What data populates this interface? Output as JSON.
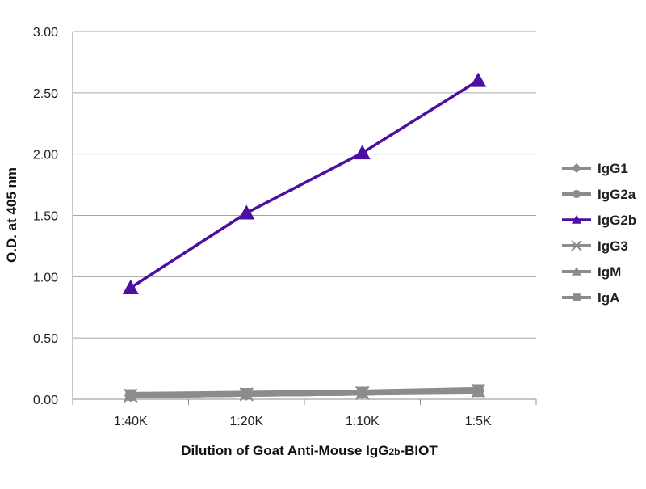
{
  "chart_data": {
    "type": "line",
    "title": "",
    "xlabel": "Dilution of Goat Anti-Mouse IgG2b-BIOT",
    "xlabel_parts": {
      "before": "Dilution of Goat Anti-Mouse IgG",
      "sub": "2b",
      "after": "-BIOT"
    },
    "ylabel": "O.D. at 405 nm",
    "categories": [
      "1:40K",
      "1:20K",
      "1:10K",
      "1:5K"
    ],
    "ylim": [
      0,
      3
    ],
    "yticks": [
      "0.00",
      "0.50",
      "1.00",
      "1.50",
      "2.00",
      "2.50",
      "3.00"
    ],
    "grid": true,
    "legend_position": "right",
    "series": [
      {
        "name": "IgG1",
        "values": [
          0.03,
          0.04,
          0.05,
          0.07
        ],
        "color": "#8c8c8c",
        "marker": "diamond"
      },
      {
        "name": "IgG2a",
        "values": [
          0.03,
          0.04,
          0.05,
          0.07
        ],
        "color": "#8c8c8c",
        "marker": "circle"
      },
      {
        "name": "IgG2b",
        "values": [
          0.91,
          1.52,
          2.01,
          2.6
        ],
        "color": "#4b0fa3",
        "marker": "triangle"
      },
      {
        "name": "IgG3",
        "values": [
          0.03,
          0.04,
          0.05,
          0.07
        ],
        "color": "#8c8c8c",
        "marker": "x"
      },
      {
        "name": "IgM",
        "values": [
          0.03,
          0.04,
          0.05,
          0.06
        ],
        "color": "#8c8c8c",
        "marker": "triangle"
      },
      {
        "name": "IgA",
        "values": [
          0.04,
          0.05,
          0.06,
          0.08
        ],
        "color": "#8c8c8c",
        "marker": "square"
      }
    ]
  }
}
